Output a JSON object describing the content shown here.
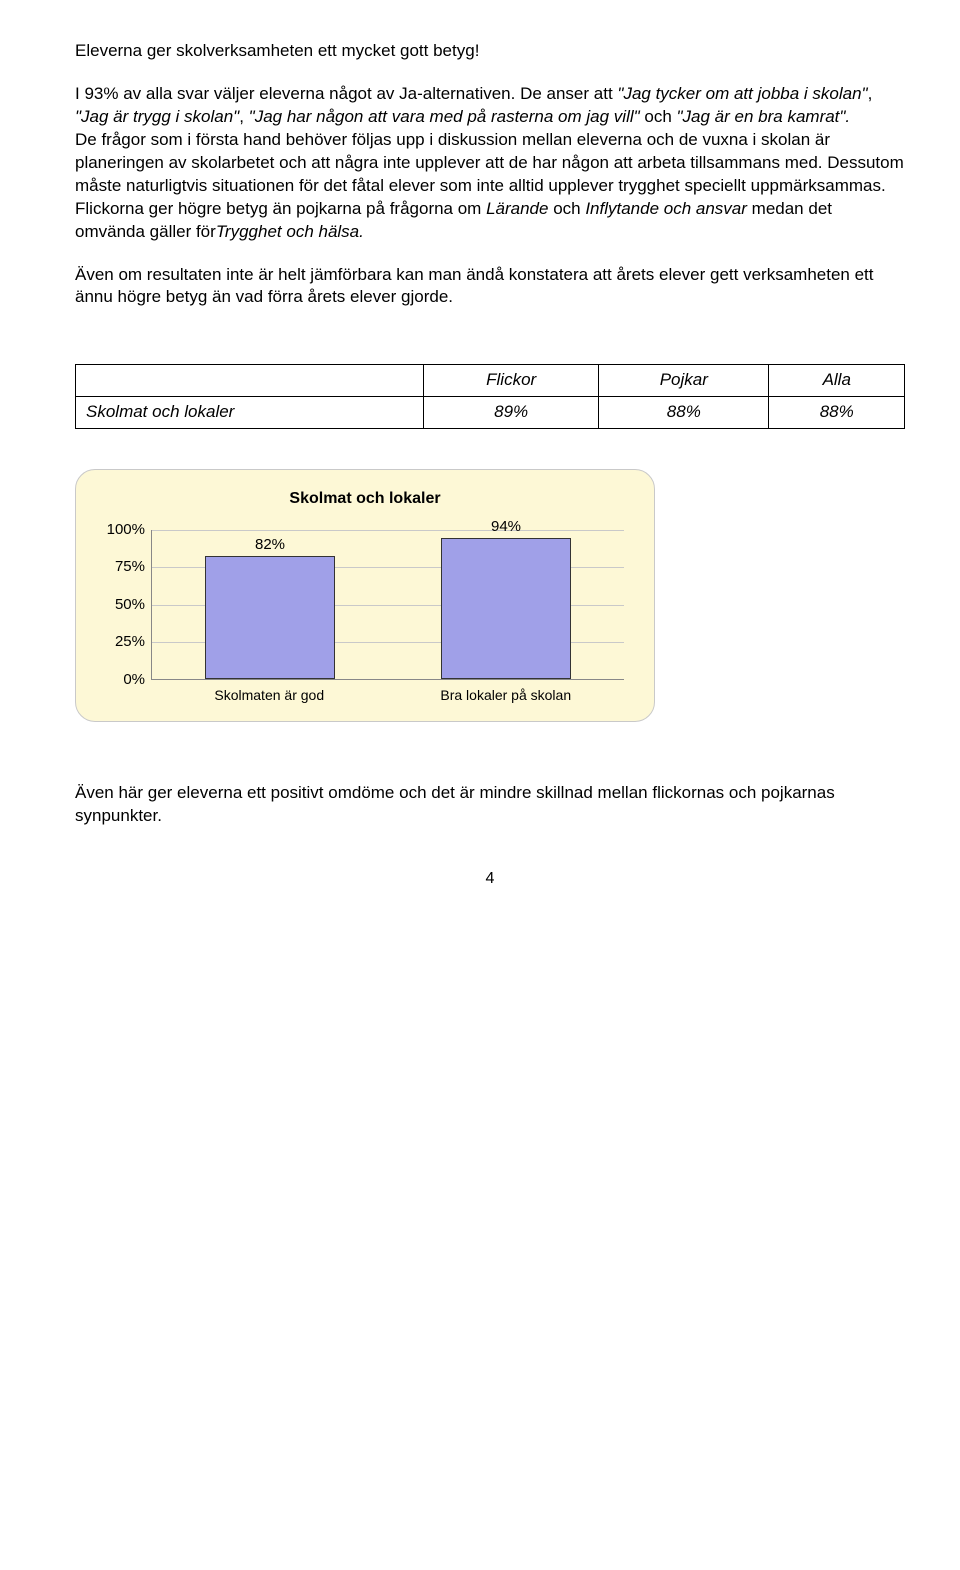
{
  "para1": "Eleverna ger skolverksamheten ett mycket gott betyg!",
  "para2_prefix": "I 93% av alla svar väljer eleverna något av Ja-alternativen. De anser att ",
  "para2_q1": "\"Jag tycker om att jobba i skolan\"",
  "para2_mid1": ", ",
  "para2_q2": "\"Jag är trygg i skolan\"",
  "para2_mid2": ", ",
  "para2_q3": "\"Jag har någon att vara med på rasterna om jag vill\"",
  "para2_mid3": " och ",
  "para2_q4": "\"Jag är en bra kamrat\".",
  "para3": "De frågor som i första hand behöver följas upp i diskussion mellan eleverna och de vuxna i skolan är planeringen av skolarbetet och att några inte upplever att de har någon att arbeta tillsammans med. Dessutom måste naturligtvis situationen för det fåtal elever som inte alltid upplever trygghet speciellt uppmärksammas.",
  "para4_pre": "Flickorna ger högre betyg än pojkarna på frågorna om ",
  "para4_i1": "Lärande",
  "para4_mid1": " och ",
  "para4_i2": "Inflytande och ansvar",
  "para4_mid2": " medan det omvända gäller för",
  "para4_i3": "Trygghet och hälsa.",
  "para5": "Även om resultaten inte är helt jämförbara kan man ändå konstatera att årets elever gett verksamheten ett ännu högre betyg än vad förra årets elever gjorde.",
  "table": {
    "col1": "Flickor",
    "col2": "Pojkar",
    "col3": "Alla",
    "rowhead": "Skolmat och lokaler",
    "v1": "89%",
    "v2": "88%",
    "v3": "88%"
  },
  "chart": {
    "title": "Skolmat och lokaler",
    "categories": [
      "Skolmaten är god",
      "Bra lokaler på skolan"
    ],
    "values": [
      82,
      94
    ],
    "value_labels": [
      "82%",
      "94%"
    ],
    "yticks": [
      0,
      25,
      50,
      75,
      100
    ],
    "ytick_labels": [
      "0%",
      "25%",
      "50%",
      "75%",
      "100%"
    ],
    "ymax": 100,
    "bar_color": "#a0a0e8",
    "card_bg": "#fdf8d6"
  },
  "para6": "Även här ger eleverna ett positivt omdöme och det är mindre skillnad mellan flickornas och pojkarnas synpunkter.",
  "pagenum": "4"
}
